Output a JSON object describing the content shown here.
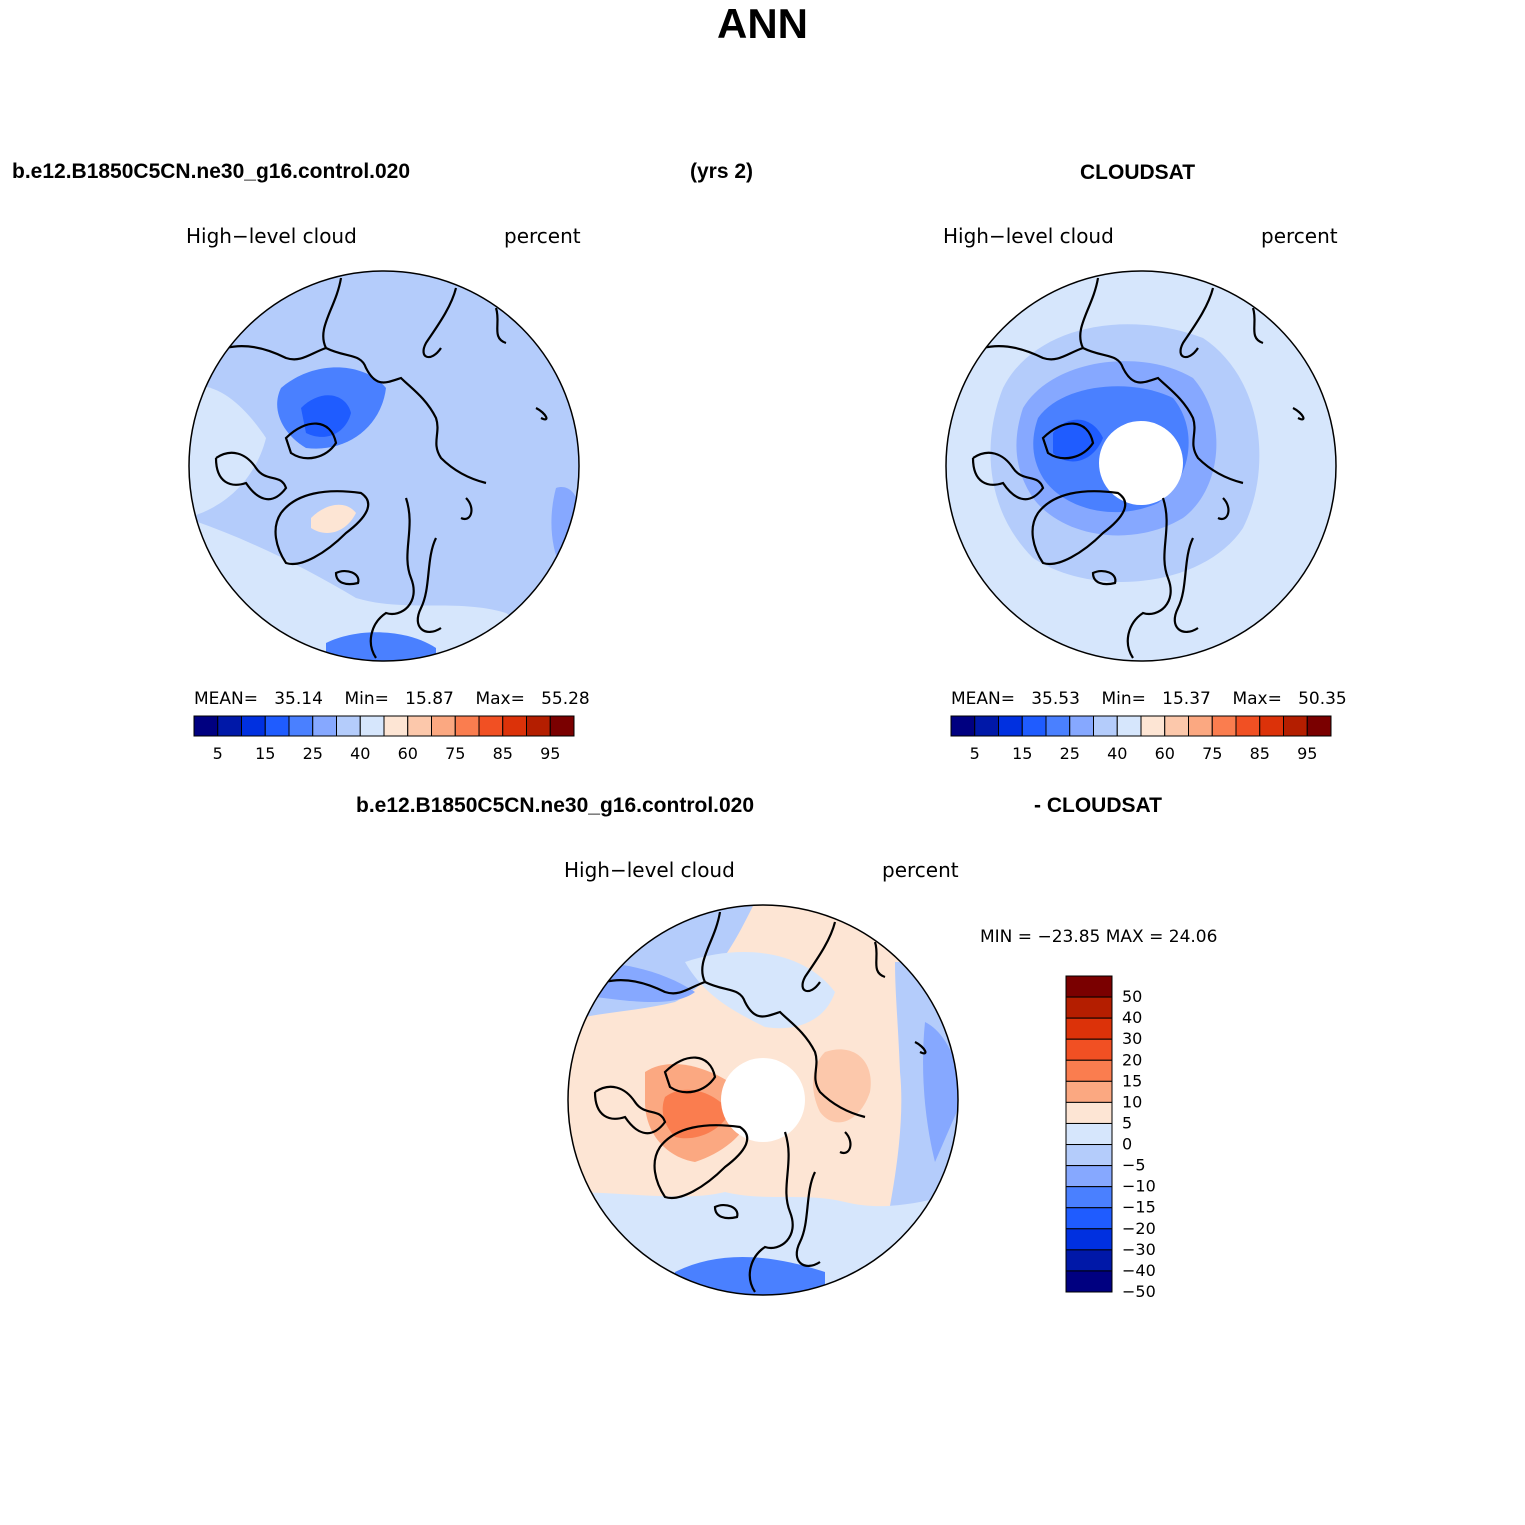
{
  "title": "ANN",
  "header": {
    "case_name": "b.e12.B1850C5CN.ne30_g16.control.020",
    "years": "(yrs 2)",
    "obs_name": "CLOUDSAT"
  },
  "panels": {
    "model": {
      "variable": "High−level cloud",
      "units": "percent",
      "stats": {
        "mean_label": "MEAN=",
        "mean": "35.14",
        "min_label": "Min=",
        "min": "15.87",
        "max_label": "Max=",
        "max": "55.28"
      }
    },
    "obs": {
      "variable": "High−level cloud",
      "units": "percent",
      "stats": {
        "mean_label": "MEAN=",
        "mean": "35.53",
        "min_label": "Min=",
        "min": "15.37",
        "max_label": "Max=",
        "max": "50.35"
      }
    },
    "diff": {
      "title_left": "b.e12.B1850C5CN.ne30_g16.control.020",
      "title_right": "- CLOUDSAT",
      "variable": "High−level cloud",
      "units": "percent",
      "minmax": "MIN = −23.85 MAX =   24.06"
    }
  },
  "colorbar_abs": {
    "colors": [
      "#000080",
      "#0018a8",
      "#0030e0",
      "#1f5cff",
      "#4a80ff",
      "#86a8ff",
      "#b4ccfb",
      "#d6e6fc",
      "#fde5d4",
      "#fcc8ab",
      "#fba881",
      "#fa7d4f",
      "#f15023",
      "#dc3209",
      "#b41e00",
      "#7a0000"
    ],
    "labels": [
      "5",
      "15",
      "25",
      "40",
      "60",
      "75",
      "85",
      "95"
    ]
  },
  "colorbar_diff": {
    "colors_top_to_bottom": [
      "#7a0000",
      "#b41e00",
      "#dc3209",
      "#f15023",
      "#fa7d4f",
      "#fba881",
      "#fde5d4",
      "#d6e6fc",
      "#b4ccfb",
      "#86a8ff",
      "#4a80ff",
      "#1f5cff",
      "#0030e0",
      "#0018a8",
      "#000080"
    ],
    "labels_top_to_bottom": [
      "50",
      "40",
      "30",
      "20",
      "15",
      "10",
      "5",
      "0",
      "−5",
      "−10",
      "−15",
      "−20",
      "−30",
      "−40",
      "−50"
    ]
  },
  "colors": {
    "model_base": "#b4ccfb",
    "obs_base": "#d6e6fc",
    "diff_base": "#fde5d4",
    "coast": "#000000"
  }
}
